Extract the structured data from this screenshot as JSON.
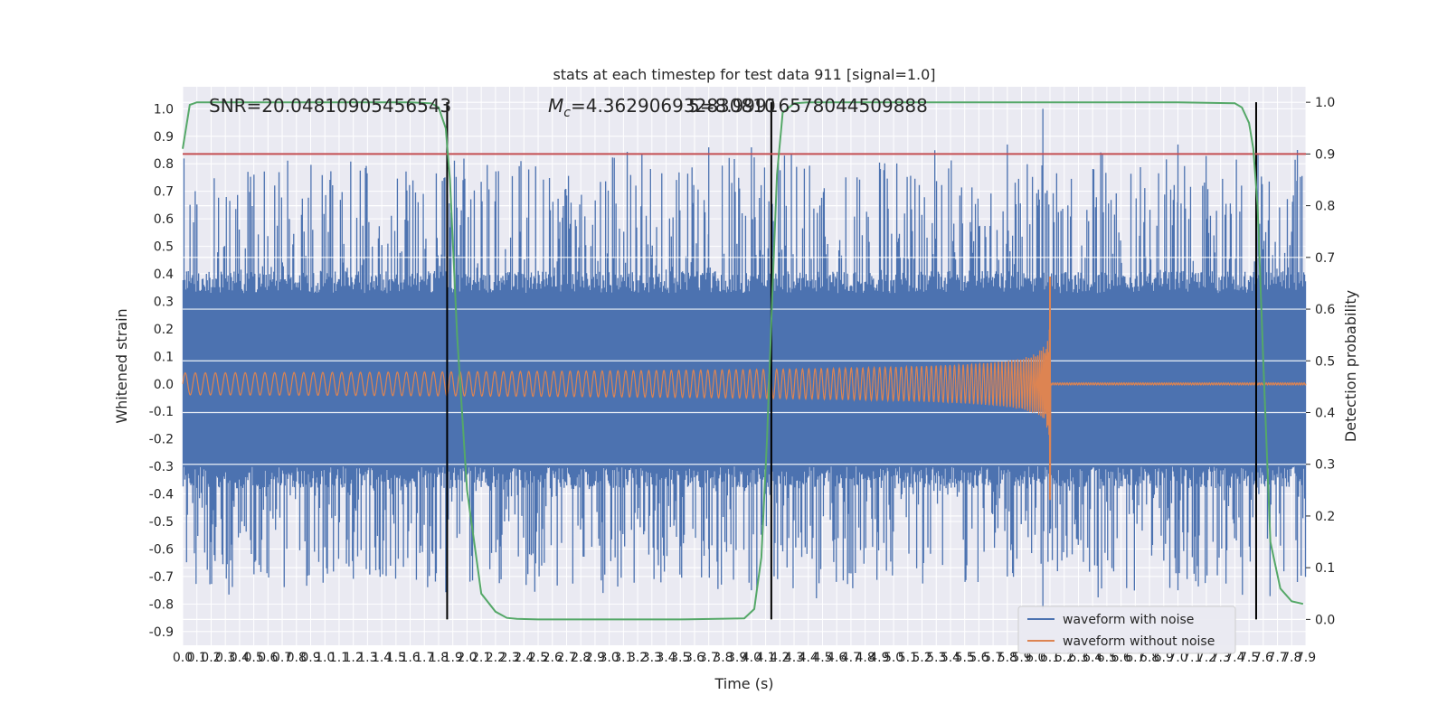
{
  "chart_data": {
    "type": "line",
    "title": "stats at each timestep for test data 911 [signal=1.0]",
    "xlabel": "Time (s)",
    "ylabel": "Whitened strain",
    "y2label": "Detection probability",
    "xlim": [
      0.0,
      7.9
    ],
    "ylim": [
      -0.95,
      1.08
    ],
    "y2lim": [
      -0.05,
      1.03
    ],
    "xticks": [
      "0.0",
      "0.1",
      "0.2",
      "0.3",
      "0.4",
      "0.5",
      "0.6",
      "0.7",
      "0.8",
      "0.9",
      "1.0",
      "1.1",
      "1.2",
      "1.3",
      "1.4",
      "1.5",
      "1.6",
      "1.7",
      "1.8",
      "1.9",
      "2.0",
      "2.1",
      "2.2",
      "2.3",
      "2.4",
      "2.5",
      "2.6",
      "2.7",
      "2.8",
      "2.9",
      "3.0",
      "3.1",
      "3.2",
      "3.3",
      "3.4",
      "3.5",
      "3.6",
      "3.7",
      "3.8",
      "3.9",
      "4.0",
      "4.1",
      "4.2",
      "4.3",
      "4.4",
      "4.5",
      "4.6",
      "4.7",
      "4.8",
      "4.9",
      "5.0",
      "5.1",
      "5.2",
      "5.3",
      "5.4",
      "5.5",
      "5.6",
      "5.7",
      "5.8",
      "5.9",
      "6.0",
      "6.1",
      "6.2",
      "6.3",
      "6.4",
      "6.5",
      "6.6",
      "6.7",
      "6.8",
      "6.9",
      "7.0",
      "7.1",
      "7.2",
      "7.3",
      "7.4",
      "7.5",
      "7.6",
      "7.7",
      "7.8",
      "7.9"
    ],
    "yticks": [
      "1.0",
      "0.9",
      "0.8",
      "0.7",
      "0.6",
      "0.5",
      "0.4",
      "0.3",
      "0.2",
      "0.1",
      "0.0",
      "-0.1",
      "-0.2",
      "-0.3",
      "-0.4",
      "-0.5",
      "-0.6",
      "-0.7",
      "-0.8",
      "-0.9"
    ],
    "y2ticks": [
      "1.0",
      "0.9",
      "0.8",
      "0.7",
      "0.6",
      "0.5",
      "0.4",
      "0.3",
      "0.2",
      "0.1",
      "0.0"
    ],
    "annotations": {
      "snr": "SNR=20.04810905456543",
      "mc_symbol": "M",
      "mc_sub": "c",
      "mc_value": "=4.362906932830810",
      "mc_overlap": "5=8.999165780445098​88"
    },
    "threshold": {
      "y2": 0.9,
      "color": "#c44e52"
    },
    "event_markers_x": [
      1.86,
      4.14,
      7.55
    ],
    "detection_probability": {
      "x": [
        0.0,
        0.05,
        0.1,
        0.2,
        0.4,
        0.8,
        1.2,
        1.6,
        1.75,
        1.8,
        1.85,
        1.88,
        1.93,
        2.0,
        2.1,
        2.2,
        2.28,
        2.35,
        2.5,
        3.0,
        3.5,
        3.95,
        4.02,
        4.07,
        4.11,
        4.15,
        4.18,
        4.22,
        4.3,
        4.4,
        4.5,
        5.0,
        6.0,
        7.0,
        7.4,
        7.45,
        7.5,
        7.53,
        7.56,
        7.6,
        7.65,
        7.72,
        7.8,
        7.88
      ],
      "y": [
        0.91,
        0.995,
        1.0,
        1.0,
        1.0,
        1.0,
        1.0,
        1.0,
        0.998,
        0.99,
        0.95,
        0.85,
        0.55,
        0.25,
        0.05,
        0.015,
        0.003,
        0.001,
        0.0,
        0.0,
        0.0,
        0.002,
        0.02,
        0.12,
        0.35,
        0.65,
        0.86,
        0.98,
        0.998,
        1.0,
        1.0,
        1.0,
        1.0,
        1.0,
        0.998,
        0.99,
        0.96,
        0.91,
        0.8,
        0.5,
        0.15,
        0.06,
        0.035,
        0.03
      ]
    },
    "series": [
      {
        "name": "waveform with noise",
        "color": "#4c72b0",
        "envelope": {
          "band": [
            -0.3,
            0.33
          ],
          "peak_max": 1.0,
          "peak_min": -0.82
        }
      },
      {
        "name": "waveform without noise",
        "color": "#dd8452",
        "chirp": {
          "start_amplitude": 0.04,
          "merger_time": 6.1,
          "peak_amplitude": 0.39,
          "trough_amplitude": -0.42
        }
      }
    ],
    "colors": {
      "background": "#eaeaf2",
      "grid": "#ffffff",
      "detection_line": "#55a868",
      "marker_line": "#000000"
    },
    "legend_placement": "bottom-right",
    "grid": true
  }
}
